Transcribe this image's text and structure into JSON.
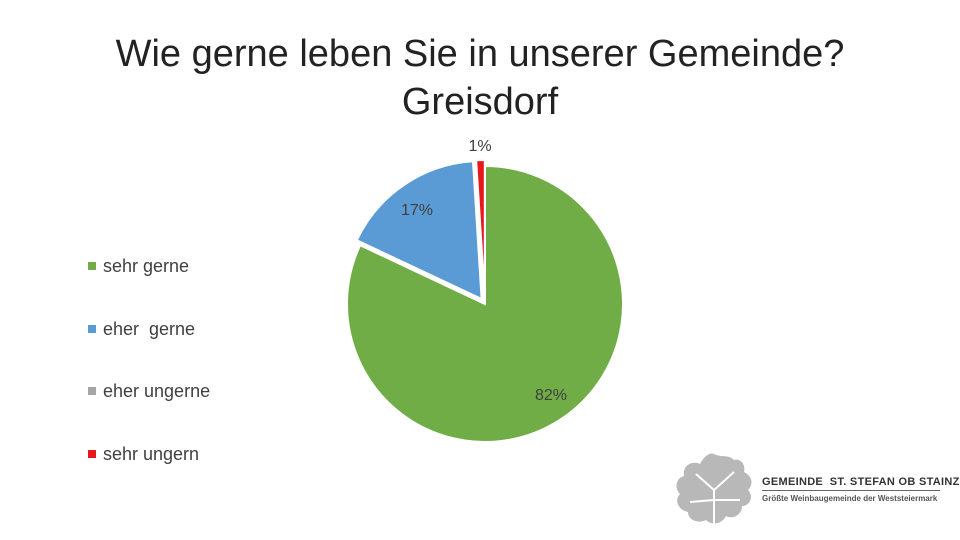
{
  "title": [
    "Wie gerne leben Sie in unserer Gemeinde?",
    "Greisdorf"
  ],
  "chart_data": {
    "type": "pie",
    "title": "Wie gerne leben Sie in unserer Gemeinde? Greisdorf",
    "slices": [
      {
        "label": "sehr gerne",
        "value": 82,
        "display": "82%",
        "color": "#70ad47"
      },
      {
        "label": "eher  gerne",
        "value": 17,
        "display": "17%",
        "color": "#5b9bd5"
      },
      {
        "label": "eher ungerne",
        "value": 0,
        "display": "",
        "color": "#a5a5a5"
      },
      {
        "label": "sehr ungern",
        "value": 1,
        "display": "1%",
        "color": "#e8171b"
      }
    ],
    "legend_position": "left"
  },
  "logo": {
    "name": "GEMEINDE  ST. STEFAN OB STAINZ",
    "tagline": "Größte Weinbaugemeinde der Weststeiermark"
  }
}
